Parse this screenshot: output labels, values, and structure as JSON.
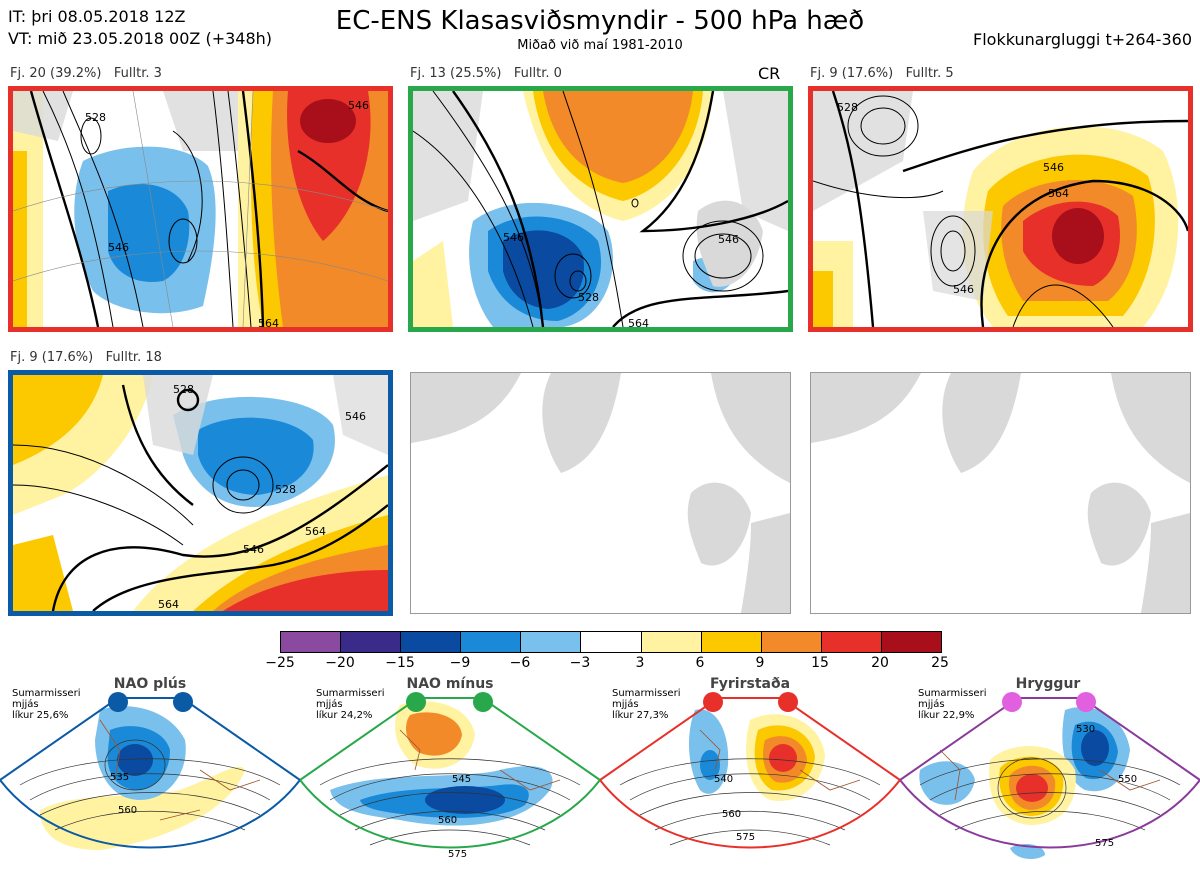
{
  "header": {
    "it_line": "IT: þri 08.05.2018 12Z",
    "vt_line": "VT: mið 23.05.2018 00Z  (+348h)",
    "title": "EC-ENS Klasasviðsmyndir - 500 hPa hæð",
    "subtitle": "Miðað við maí 1981-2010",
    "window": "Flokkunargluggi t+264-360"
  },
  "panels": [
    {
      "label": "Fj. 20 (39.2%)   Fulltr. 3",
      "tag": "",
      "border": "#e8302a",
      "contours": [
        "546",
        "564",
        "528",
        "546"
      ]
    },
    {
      "label": "Fj. 13 (25.5%)   Fulltr. 0",
      "tag": "CR",
      "border": "#28a84a",
      "contours": [
        "546",
        "528",
        "546",
        "564"
      ]
    },
    {
      "label": "Fj. 9 (17.6%)   Fulltr. 5",
      "tag": "",
      "border": "#e8302a",
      "contours": [
        "546",
        "564",
        "546",
        "528"
      ]
    },
    {
      "label": "Fj. 9 (17.6%)   Fulltr. 18",
      "tag": "",
      "border": "#0a5aa5",
      "contours": [
        "528",
        "546",
        "528",
        "564",
        "546",
        "564"
      ]
    }
  ],
  "colorbar": {
    "ticks": [
      "−25",
      "−20",
      "−15",
      "−9",
      "−6",
      "−3",
      "3",
      "6",
      "9",
      "15",
      "20",
      "25"
    ],
    "colors": [
      "#8a4aa0",
      "#3a2a8a",
      "#0a4aa0",
      "#1a8ad8",
      "#7ac0ec",
      "#ffffff",
      "#fff2a0",
      "#fcc800",
      "#f28a2a",
      "#e8302a",
      "#a80f1a"
    ]
  },
  "regimes": [
    {
      "title": "NAO plús",
      "text": [
        "Sumarmisseri",
        "mjjás",
        "líkur 25,6%"
      ],
      "color": "#0a5aa5",
      "labels": [
        "535",
        "560"
      ]
    },
    {
      "title": "NAO mínus",
      "text": [
        "Sumarmisseri",
        "mjjás",
        "líkur 24,2%"
      ],
      "color": "#28a84a",
      "labels": [
        "545",
        "560",
        "575"
      ]
    },
    {
      "title": "Fyrirstaða",
      "text": [
        "Sumarmisseri",
        "mjjás",
        "líkur 27,3%"
      ],
      "color": "#e8302a",
      "labels": [
        "540",
        "560",
        "575"
      ]
    },
    {
      "title": "Hryggur",
      "text": [
        "Sumarmisseri",
        "mjjás",
        "líkur 22,9%"
      ],
      "color": "#e060e0",
      "labels": [
        "530",
        "550",
        "575"
      ]
    }
  ]
}
